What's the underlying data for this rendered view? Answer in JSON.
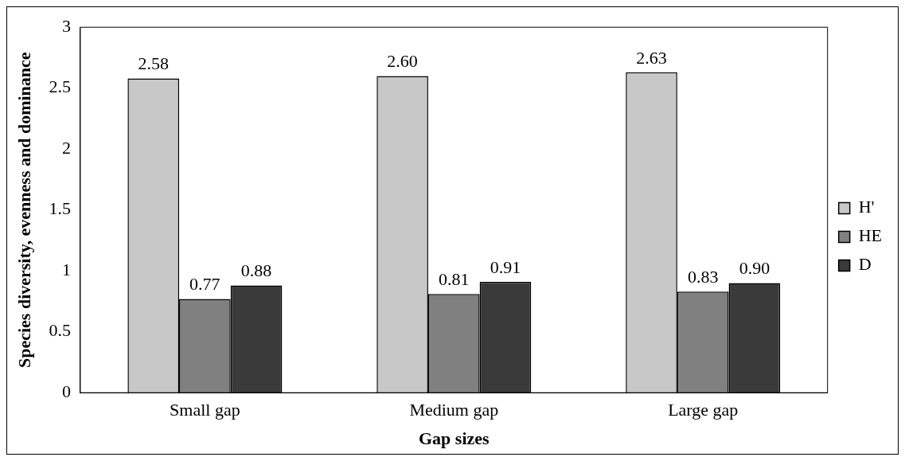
{
  "chart_data": {
    "type": "bar",
    "xlabel": "Gap sizes",
    "ylabel": "Species diversity, evenness and dominance",
    "categories": [
      "Small gap",
      "Medium gap",
      "Large gap"
    ],
    "series": [
      {
        "name": "H'",
        "color": "#c8c8c8",
        "values": [
          2.58,
          2.6,
          2.63
        ],
        "value_labels": [
          "2.58",
          "2.60",
          "2.63"
        ]
      },
      {
        "name": "HE",
        "color": "#808080",
        "values": [
          0.77,
          0.81,
          0.83
        ],
        "value_labels": [
          "0.77",
          "0.81",
          "0.83"
        ]
      },
      {
        "name": "D",
        "color": "#3a3a3a",
        "values": [
          0.88,
          0.91,
          0.9
        ],
        "value_labels": [
          "0.88",
          "0.91",
          "0.90"
        ]
      }
    ],
    "ylim": [
      0,
      3
    ],
    "yticks": [
      0,
      0.5,
      1,
      1.5,
      2,
      2.5,
      3
    ],
    "grid": false,
    "legend": "right"
  }
}
